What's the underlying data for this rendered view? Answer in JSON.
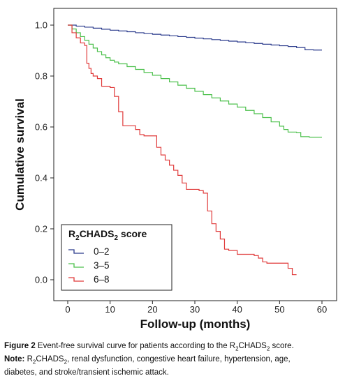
{
  "chart_data": {
    "type": "line",
    "step": true,
    "xlabel": "Follow-up (months)",
    "ylabel": "Cumulative survival",
    "xlim": [
      0,
      60
    ],
    "ylim": [
      0,
      1
    ],
    "x_ticks": [
      0,
      10,
      20,
      30,
      40,
      50,
      60
    ],
    "y_ticks": [
      0.0,
      0.2,
      0.4,
      0.6,
      0.8,
      1.0
    ],
    "x_tick_labels": [
      "0",
      "10",
      "20",
      "30",
      "40",
      "50",
      "60"
    ],
    "y_tick_labels": [
      "0.0",
      "0.2",
      "0.4",
      "0.6",
      "0.8",
      "1.0"
    ],
    "grid": false,
    "legend": {
      "title_parts": [
        "R",
        "2",
        "CHADS",
        "2",
        " score"
      ],
      "placement": "bottom-left"
    },
    "series": [
      {
        "name": "0–2",
        "color": "#2a3a8c",
        "points": [
          [
            0,
            1.0
          ],
          [
            2,
            0.996
          ],
          [
            4,
            0.992
          ],
          [
            6,
            0.988
          ],
          [
            8,
            0.984
          ],
          [
            10,
            0.98
          ],
          [
            12,
            0.977
          ],
          [
            14,
            0.974
          ],
          [
            16,
            0.97
          ],
          [
            18,
            0.967
          ],
          [
            20,
            0.964
          ],
          [
            22,
            0.961
          ],
          [
            24,
            0.958
          ],
          [
            26,
            0.955
          ],
          [
            28,
            0.952
          ],
          [
            30,
            0.949
          ],
          [
            32,
            0.946
          ],
          [
            34,
            0.943
          ],
          [
            36,
            0.94
          ],
          [
            38,
            0.937
          ],
          [
            40,
            0.934
          ],
          [
            42,
            0.931
          ],
          [
            44,
            0.928
          ],
          [
            46,
            0.925
          ],
          [
            48,
            0.922
          ],
          [
            50,
            0.919
          ],
          [
            52,
            0.916
          ],
          [
            54,
            0.912
          ],
          [
            56,
            0.903
          ],
          [
            58,
            0.902
          ],
          [
            60,
            0.902
          ]
        ]
      },
      {
        "name": "3–5",
        "color": "#4cc04c",
        "points": [
          [
            0,
            1.0
          ],
          [
            1,
            0.985
          ],
          [
            2,
            0.97
          ],
          [
            3,
            0.955
          ],
          [
            4,
            0.94
          ],
          [
            5,
            0.925
          ],
          [
            6,
            0.91
          ],
          [
            7,
            0.896
          ],
          [
            8,
            0.883
          ],
          [
            9,
            0.872
          ],
          [
            10,
            0.862
          ],
          [
            11,
            0.855
          ],
          [
            12,
            0.848
          ],
          [
            14,
            0.837
          ],
          [
            16,
            0.826
          ],
          [
            18,
            0.814
          ],
          [
            20,
            0.803
          ],
          [
            22,
            0.79
          ],
          [
            24,
            0.777
          ],
          [
            26,
            0.764
          ],
          [
            28,
            0.752
          ],
          [
            30,
            0.74
          ],
          [
            32,
            0.727
          ],
          [
            34,
            0.714
          ],
          [
            36,
            0.702
          ],
          [
            38,
            0.69
          ],
          [
            40,
            0.678
          ],
          [
            42,
            0.665
          ],
          [
            44,
            0.652
          ],
          [
            46,
            0.637
          ],
          [
            48,
            0.62
          ],
          [
            50,
            0.603
          ],
          [
            51,
            0.59
          ],
          [
            52,
            0.58
          ],
          [
            54,
            0.578
          ],
          [
            55,
            0.562
          ],
          [
            57,
            0.56
          ],
          [
            60,
            0.56
          ]
        ]
      },
      {
        "name": "6–8",
        "color": "#e03a3a",
        "points": [
          [
            0,
            1.0
          ],
          [
            1,
            0.97
          ],
          [
            2,
            0.95
          ],
          [
            3,
            0.93
          ],
          [
            4,
            0.92
          ],
          [
            4.5,
            0.85
          ],
          [
            5,
            0.83
          ],
          [
            5.5,
            0.81
          ],
          [
            6,
            0.8
          ],
          [
            7,
            0.79
          ],
          [
            8,
            0.76
          ],
          [
            10,
            0.755
          ],
          [
            11,
            0.72
          ],
          [
            12,
            0.66
          ],
          [
            13,
            0.605
          ],
          [
            16,
            0.59
          ],
          [
            17,
            0.57
          ],
          [
            18,
            0.565
          ],
          [
            21,
            0.52
          ],
          [
            22,
            0.49
          ],
          [
            23,
            0.47
          ],
          [
            24,
            0.45
          ],
          [
            25,
            0.43
          ],
          [
            26,
            0.41
          ],
          [
            27,
            0.38
          ],
          [
            28,
            0.355
          ],
          [
            31,
            0.35
          ],
          [
            32,
            0.34
          ],
          [
            33,
            0.27
          ],
          [
            34,
            0.22
          ],
          [
            35,
            0.19
          ],
          [
            36,
            0.16
          ],
          [
            37,
            0.12
          ],
          [
            38,
            0.115
          ],
          [
            40,
            0.1
          ],
          [
            44,
            0.095
          ],
          [
            45,
            0.085
          ],
          [
            46,
            0.07
          ],
          [
            47,
            0.065
          ],
          [
            51,
            0.065
          ],
          [
            52,
            0.045
          ],
          [
            53,
            0.02
          ],
          [
            54,
            0.02
          ]
        ]
      }
    ]
  },
  "caption": {
    "figure_label": "Figure 2",
    "figure_text_parts": [
      " Event-free survival curve for patients according to the R",
      "2",
      "CHADS",
      "2",
      " score."
    ],
    "note_label": "Note:",
    "note_text_parts": [
      " R",
      "2",
      "CHADS",
      "2",
      ", renal dysfunction, congestive heart failure, hypertension, age,"
    ],
    "note_line2": "diabetes, and stroke/transient ischemic attack."
  }
}
